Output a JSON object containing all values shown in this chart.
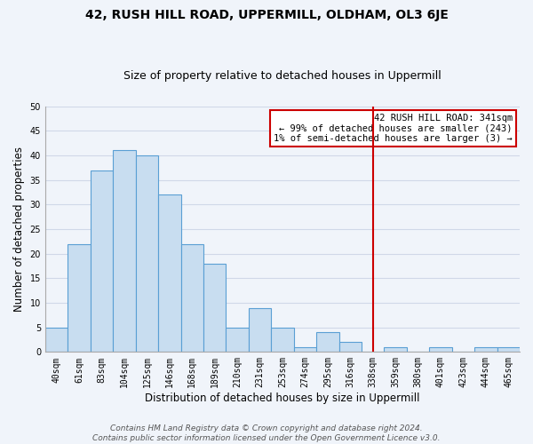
{
  "title": "42, RUSH HILL ROAD, UPPERMILL, OLDHAM, OL3 6JE",
  "subtitle": "Size of property relative to detached houses in Uppermill",
  "xlabel": "Distribution of detached houses by size in Uppermill",
  "ylabel": "Number of detached properties",
  "bin_labels": [
    "40sqm",
    "61sqm",
    "83sqm",
    "104sqm",
    "125sqm",
    "146sqm",
    "168sqm",
    "189sqm",
    "210sqm",
    "231sqm",
    "253sqm",
    "274sqm",
    "295sqm",
    "316sqm",
    "338sqm",
    "359sqm",
    "380sqm",
    "401sqm",
    "423sqm",
    "444sqm",
    "465sqm"
  ],
  "bar_heights": [
    5,
    22,
    37,
    41,
    40,
    32,
    22,
    18,
    5,
    9,
    5,
    1,
    4,
    2,
    0,
    1,
    0,
    1,
    0,
    1,
    1
  ],
  "bar_color": "#c8ddf0",
  "bar_edge_color": "#5a9fd4",
  "grid_color": "#d0d8e8",
  "background_color": "#f0f4fa",
  "marker_line_x_label": "338sqm",
  "marker_line_color": "#cc0000",
  "annotation_line1": "42 RUSH HILL ROAD: 341sqm",
  "annotation_line2": "← 99% of detached houses are smaller (243)",
  "annotation_line3": "1% of semi-detached houses are larger (3) →",
  "annotation_box_color": "#ffffff",
  "annotation_border_color": "#cc0000",
  "ylim": [
    0,
    50
  ],
  "yticks": [
    0,
    5,
    10,
    15,
    20,
    25,
    30,
    35,
    40,
    45,
    50
  ],
  "footer_line1": "Contains HM Land Registry data © Crown copyright and database right 2024.",
  "footer_line2": "Contains public sector information licensed under the Open Government Licence v3.0.",
  "title_fontsize": 10,
  "subtitle_fontsize": 9,
  "axis_label_fontsize": 8.5,
  "tick_fontsize": 7,
  "annotation_fontsize": 7.5,
  "footer_fontsize": 6.5
}
